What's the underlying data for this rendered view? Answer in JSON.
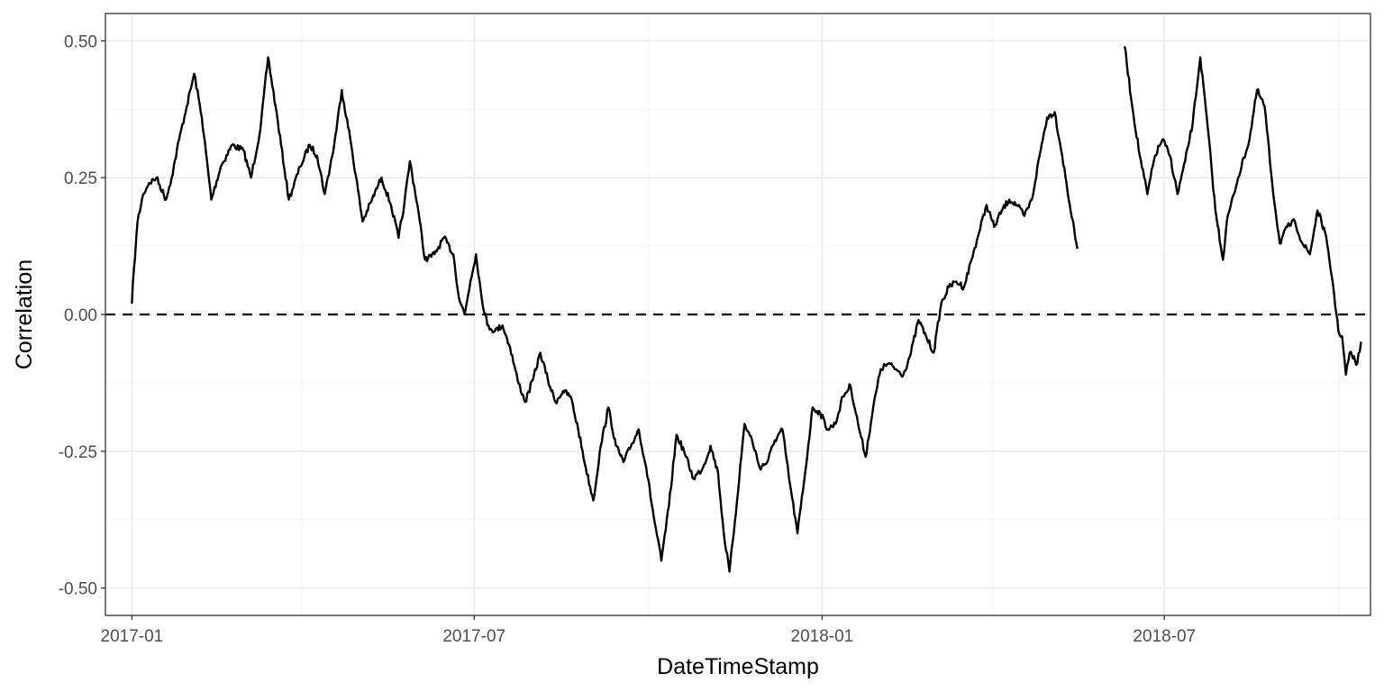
{
  "chart_data": {
    "type": "line",
    "title": "",
    "xlabel": "DateTimeStamp",
    "ylabel": "Correlation",
    "x_type": "date",
    "xlim": [
      "2016-12-18",
      "2018-10-18"
    ],
    "ylim": [
      -0.55,
      0.55
    ],
    "x_ticks": [
      {
        "value": "2017-01-01",
        "label": "2017-01"
      },
      {
        "value": "2017-07-01",
        "label": "2017-07"
      },
      {
        "value": "2018-01-01",
        "label": "2018-01"
      },
      {
        "value": "2018-07-01",
        "label": "2018-07"
      }
    ],
    "x_minor_ticks": [
      "2017-04-01",
      "2017-10-01",
      "2018-04-01",
      "2018-10-01"
    ],
    "y_ticks": [
      {
        "value": 0.5,
        "label": "0.50"
      },
      {
        "value": 0.25,
        "label": "0.25"
      },
      {
        "value": 0.0,
        "label": "0.00"
      },
      {
        "value": -0.25,
        "label": "-0.25"
      },
      {
        "value": -0.5,
        "label": "-0.50"
      }
    ],
    "y_minor_ticks": [
      0.375,
      0.125,
      -0.125,
      -0.375
    ],
    "grid": true,
    "reference_line": {
      "y": 0,
      "style": "dashed",
      "color": "#000000"
    },
    "series": [
      {
        "color": "#000000",
        "segments": [
          [
            [
              "2017-01-01",
              0.02
            ],
            [
              "2017-01-02",
              0.08
            ],
            [
              "2017-01-04",
              0.17
            ],
            [
              "2017-01-07",
              0.22
            ],
            [
              "2017-01-10",
              0.24
            ],
            [
              "2017-01-14",
              0.25
            ],
            [
              "2017-01-19",
              0.21
            ],
            [
              "2017-01-22",
              0.25
            ],
            [
              "2017-01-26",
              0.32
            ],
            [
              "2017-01-30",
              0.38
            ],
            [
              "2017-02-03",
              0.44
            ],
            [
              "2017-02-07",
              0.36
            ],
            [
              "2017-02-12",
              0.21
            ],
            [
              "2017-02-17",
              0.27
            ],
            [
              "2017-02-23",
              0.31
            ],
            [
              "2017-03-01",
              0.3
            ],
            [
              "2017-03-05",
              0.25
            ],
            [
              "2017-03-10",
              0.34
            ],
            [
              "2017-03-14",
              0.47
            ],
            [
              "2017-03-18",
              0.38
            ],
            [
              "2017-03-25",
              0.21
            ],
            [
              "2017-03-31",
              0.27
            ],
            [
              "2017-04-05",
              0.31
            ],
            [
              "2017-04-09",
              0.29
            ],
            [
              "2017-04-13",
              0.22
            ],
            [
              "2017-04-18",
              0.31
            ],
            [
              "2017-04-22",
              0.41
            ],
            [
              "2017-04-27",
              0.31
            ],
            [
              "2017-05-03",
              0.17
            ],
            [
              "2017-05-08",
              0.21
            ],
            [
              "2017-05-13",
              0.25
            ],
            [
              "2017-05-18",
              0.2
            ],
            [
              "2017-05-22",
              0.14
            ],
            [
              "2017-05-25",
              0.2
            ],
            [
              "2017-05-28",
              0.28
            ],
            [
              "2017-06-01",
              0.2
            ],
            [
              "2017-06-05",
              0.1
            ],
            [
              "2017-06-10",
              0.11
            ],
            [
              "2017-06-15",
              0.14
            ],
            [
              "2017-06-20",
              0.11
            ],
            [
              "2017-06-23",
              0.03
            ],
            [
              "2017-06-26",
              0.0
            ],
            [
              "2017-06-29",
              0.06
            ],
            [
              "2017-07-02",
              0.11
            ],
            [
              "2017-07-05",
              0.03
            ],
            [
              "2017-07-08",
              -0.02
            ],
            [
              "2017-07-12",
              -0.03
            ],
            [
              "2017-07-16",
              -0.02
            ],
            [
              "2017-07-20",
              -0.06
            ],
            [
              "2017-07-24",
              -0.12
            ],
            [
              "2017-07-28",
              -0.16
            ],
            [
              "2017-08-01",
              -0.12
            ],
            [
              "2017-08-05",
              -0.07
            ],
            [
              "2017-08-09",
              -0.12
            ],
            [
              "2017-08-13",
              -0.16
            ],
            [
              "2017-08-17",
              -0.14
            ],
            [
              "2017-08-21",
              -0.15
            ],
            [
              "2017-08-25",
              -0.21
            ],
            [
              "2017-08-29",
              -0.28
            ],
            [
              "2017-09-02",
              -0.34
            ],
            [
              "2017-09-06",
              -0.24
            ],
            [
              "2017-09-10",
              -0.17
            ],
            [
              "2017-09-14",
              -0.24
            ],
            [
              "2017-09-18",
              -0.27
            ],
            [
              "2017-09-22",
              -0.24
            ],
            [
              "2017-09-26",
              -0.21
            ],
            [
              "2017-09-30",
              -0.28
            ],
            [
              "2017-10-04",
              -0.37
            ],
            [
              "2017-10-08",
              -0.45
            ],
            [
              "2017-10-12",
              -0.35
            ],
            [
              "2017-10-16",
              -0.22
            ],
            [
              "2017-10-20",
              -0.25
            ],
            [
              "2017-10-25",
              -0.3
            ],
            [
              "2017-10-30",
              -0.28
            ],
            [
              "2017-11-03",
              -0.24
            ],
            [
              "2017-11-07",
              -0.29
            ],
            [
              "2017-11-10",
              -0.4
            ],
            [
              "2017-11-13",
              -0.47
            ],
            [
              "2017-11-17",
              -0.34
            ],
            [
              "2017-11-21",
              -0.2
            ],
            [
              "2017-11-25",
              -0.23
            ],
            [
              "2017-11-29",
              -0.28
            ],
            [
              "2017-12-03",
              -0.27
            ],
            [
              "2017-12-07",
              -0.23
            ],
            [
              "2017-12-11",
              -0.21
            ],
            [
              "2017-12-15",
              -0.31
            ],
            [
              "2017-12-19",
              -0.4
            ],
            [
              "2017-12-23",
              -0.29
            ],
            [
              "2017-12-27",
              -0.17
            ],
            [
              "2017-12-31",
              -0.18
            ],
            [
              "2018-01-04",
              -0.21
            ],
            [
              "2018-01-08",
              -0.2
            ],
            [
              "2018-01-12",
              -0.15
            ],
            [
              "2018-01-16",
              -0.13
            ],
            [
              "2018-01-20",
              -0.2
            ],
            [
              "2018-01-24",
              -0.26
            ],
            [
              "2018-01-28",
              -0.17
            ],
            [
              "2018-02-01",
              -0.1
            ],
            [
              "2018-02-05",
              -0.09
            ],
            [
              "2018-02-09",
              -0.1
            ],
            [
              "2018-02-13",
              -0.11
            ],
            [
              "2018-02-17",
              -0.07
            ],
            [
              "2018-02-21",
              -0.01
            ],
            [
              "2018-02-25",
              -0.04
            ],
            [
              "2018-03-01",
              -0.07
            ],
            [
              "2018-03-05",
              0.02
            ],
            [
              "2018-03-09",
              0.05
            ],
            [
              "2018-03-13",
              0.06
            ],
            [
              "2018-03-17",
              0.05
            ],
            [
              "2018-03-21",
              0.1
            ],
            [
              "2018-03-25",
              0.15
            ],
            [
              "2018-03-29",
              0.2
            ],
            [
              "2018-04-02",
              0.16
            ],
            [
              "2018-04-06",
              0.19
            ],
            [
              "2018-04-10",
              0.21
            ],
            [
              "2018-04-14",
              0.2
            ],
            [
              "2018-04-18",
              0.18
            ],
            [
              "2018-04-22",
              0.21
            ],
            [
              "2018-04-26",
              0.29
            ],
            [
              "2018-04-30",
              0.36
            ],
            [
              "2018-05-04",
              0.37
            ],
            [
              "2018-05-08",
              0.29
            ],
            [
              "2018-05-12",
              0.2
            ],
            [
              "2018-05-16",
              0.12
            ]
          ],
          [
            [
              "2018-06-10",
              0.49
            ],
            [
              "2018-06-14",
              0.38
            ],
            [
              "2018-06-18",
              0.29
            ],
            [
              "2018-06-22",
              0.22
            ],
            [
              "2018-06-26",
              0.29
            ],
            [
              "2018-06-30",
              0.32
            ],
            [
              "2018-07-04",
              0.29
            ],
            [
              "2018-07-08",
              0.22
            ],
            [
              "2018-07-12",
              0.28
            ],
            [
              "2018-07-16",
              0.35
            ],
            [
              "2018-07-20",
              0.47
            ],
            [
              "2018-07-24",
              0.34
            ],
            [
              "2018-07-28",
              0.19
            ],
            [
              "2018-08-01",
              0.1
            ],
            [
              "2018-08-03",
              0.17
            ],
            [
              "2018-08-09",
              0.25
            ],
            [
              "2018-08-15",
              0.32
            ],
            [
              "2018-08-19",
              0.41
            ],
            [
              "2018-08-23",
              0.38
            ],
            [
              "2018-08-27",
              0.24
            ],
            [
              "2018-08-31",
              0.13
            ],
            [
              "2018-09-04",
              0.16
            ],
            [
              "2018-09-08",
              0.17
            ],
            [
              "2018-09-12",
              0.13
            ],
            [
              "2018-09-16",
              0.11
            ],
            [
              "2018-09-20",
              0.19
            ],
            [
              "2018-09-24",
              0.15
            ],
            [
              "2018-09-28",
              0.06
            ],
            [
              "2018-09-30",
              0.0
            ],
            [
              "2018-10-01",
              -0.03
            ],
            [
              "2018-10-03",
              -0.04
            ],
            [
              "2018-10-05",
              -0.11
            ],
            [
              "2018-10-07",
              -0.07
            ],
            [
              "2018-10-11",
              -0.09
            ],
            [
              "2018-10-13",
              -0.05
            ]
          ]
        ]
      }
    ]
  }
}
